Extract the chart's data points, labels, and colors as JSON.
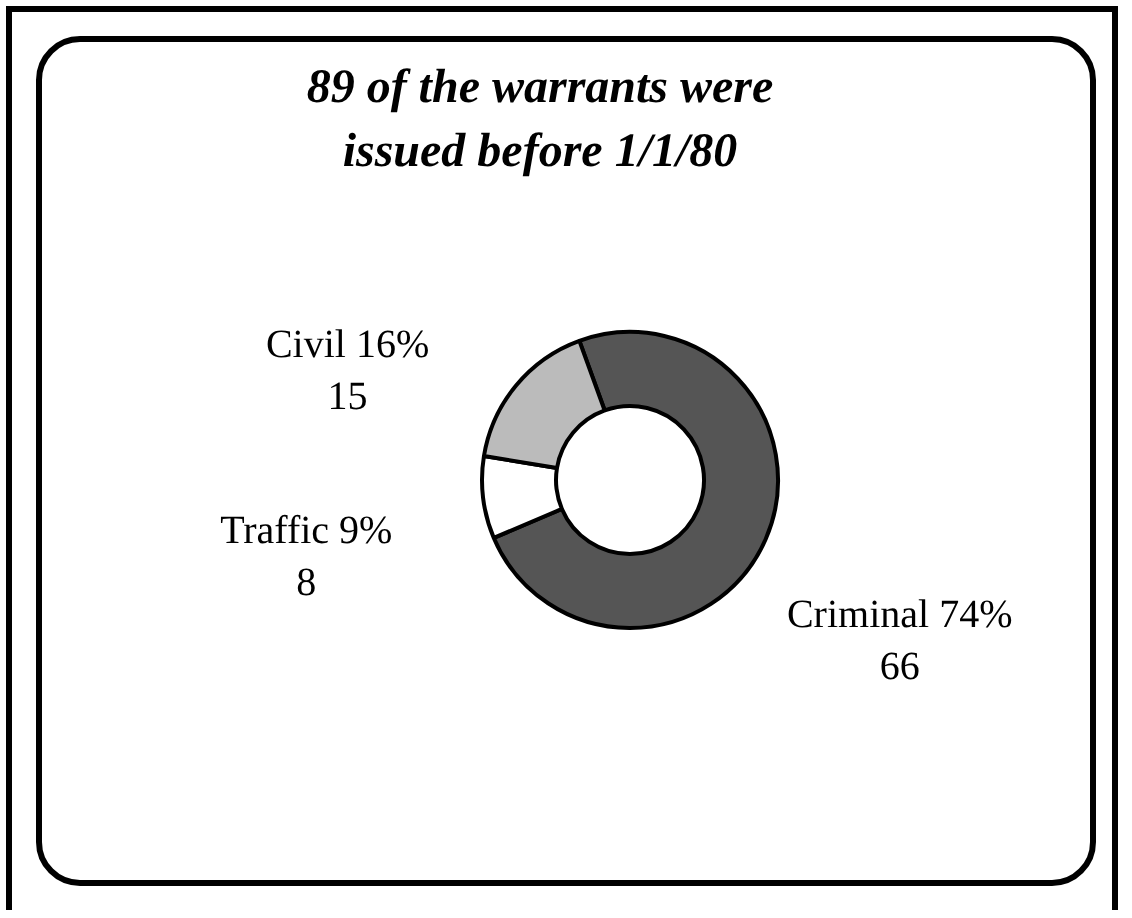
{
  "chart_data": {
    "type": "donut",
    "title": "89 of the warrants were issued before 1/1/80",
    "categories": [
      "Criminal 74%",
      "Traffic 9%",
      "Civil 16%"
    ],
    "values": [
      66,
      8,
      15
    ],
    "colors": [
      "#555555",
      "#ffffff",
      "#bbbbbb"
    ],
    "data_labels": true,
    "legend": false
  }
}
